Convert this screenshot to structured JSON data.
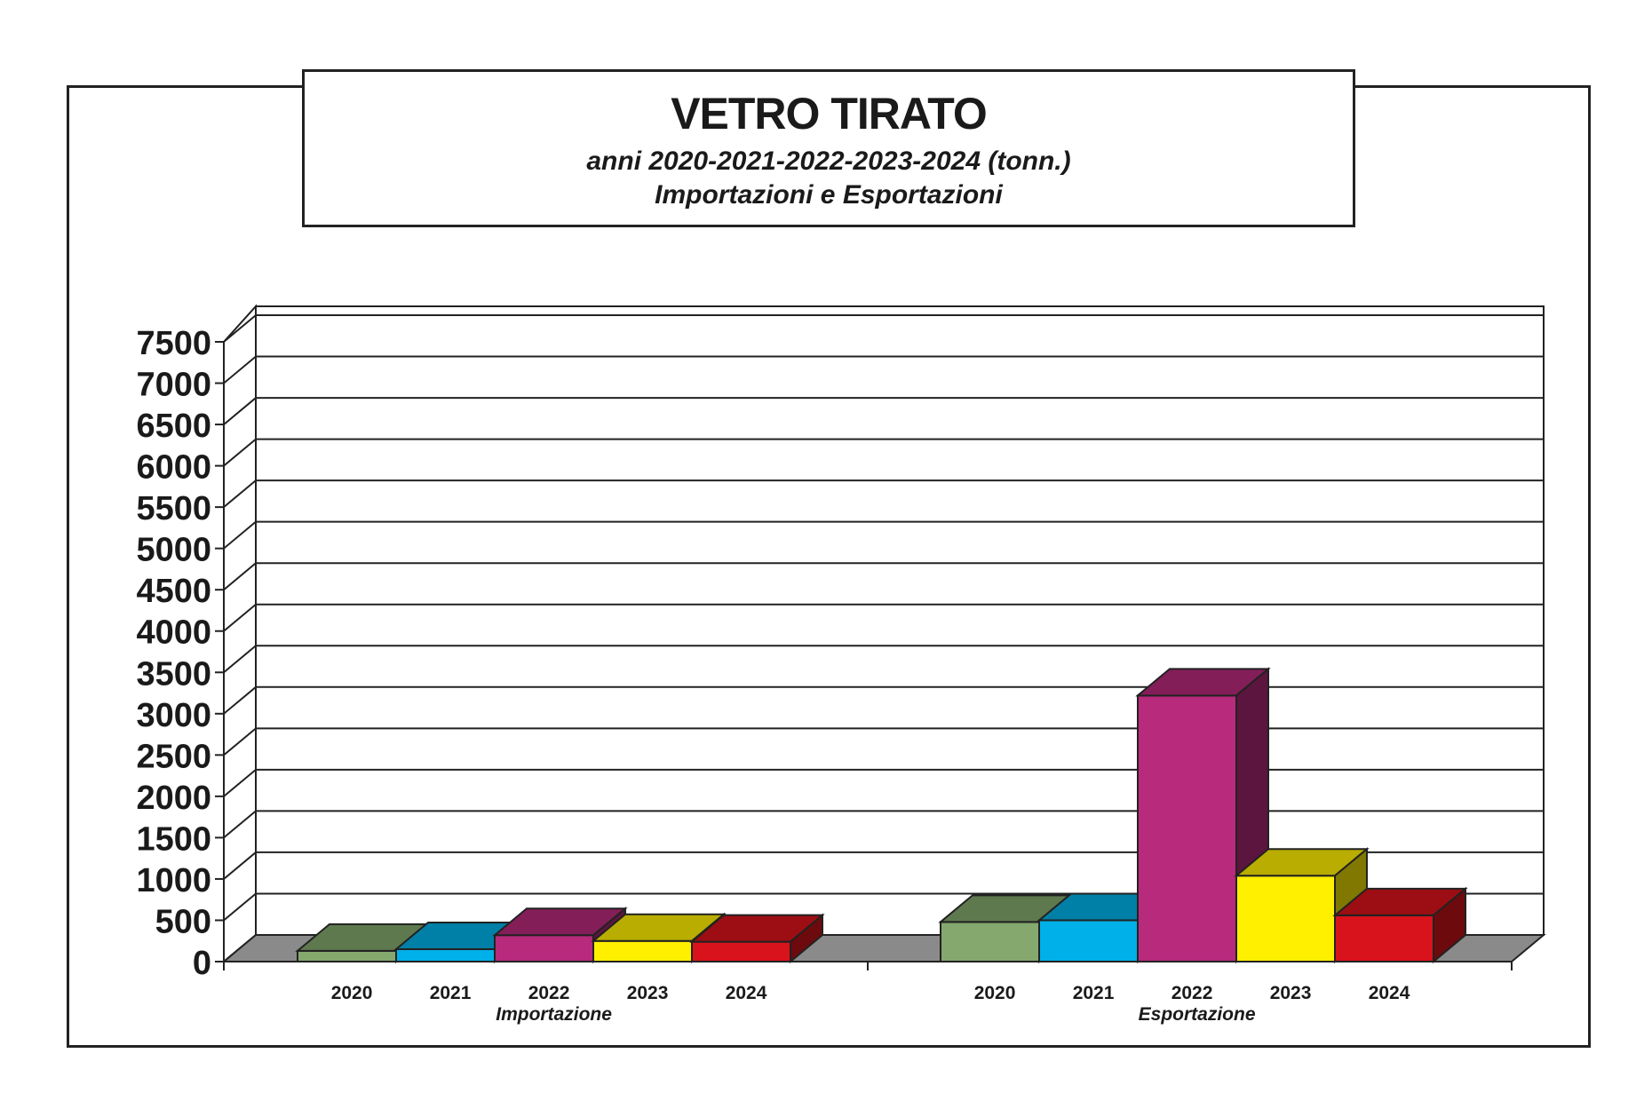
{
  "chart_data": {
    "type": "bar",
    "title": "VETRO TIRATO",
    "subtitle": "anni 2020-2021-2022-2023-2024 (tonn.)",
    "subtitle2": "Importazioni e Esportazioni",
    "groups": [
      "Importazione",
      "Esportazione"
    ],
    "categories": [
      "2020",
      "2021",
      "2022",
      "2023",
      "2024"
    ],
    "series": [
      {
        "values": [
          130,
          150,
          320,
          250,
          240
        ]
      },
      {
        "values": [
          480,
          500,
          3220,
          1040,
          560
        ]
      }
    ],
    "colors": {
      "2020": "#84a86e",
      "2021": "#00b0e8",
      "2022": "#b72a7c",
      "2023": "#fff000",
      "2024": "#d9131b"
    },
    "ylim": [
      0,
      7500
    ],
    "yticks": [
      "0",
      "500",
      "1000",
      "1500",
      "2000",
      "2500",
      "3000",
      "3500",
      "4000",
      "4500",
      "5000",
      "5500",
      "6000",
      "6500",
      "7000",
      "7500"
    ],
    "grid": true,
    "style": "3d"
  }
}
